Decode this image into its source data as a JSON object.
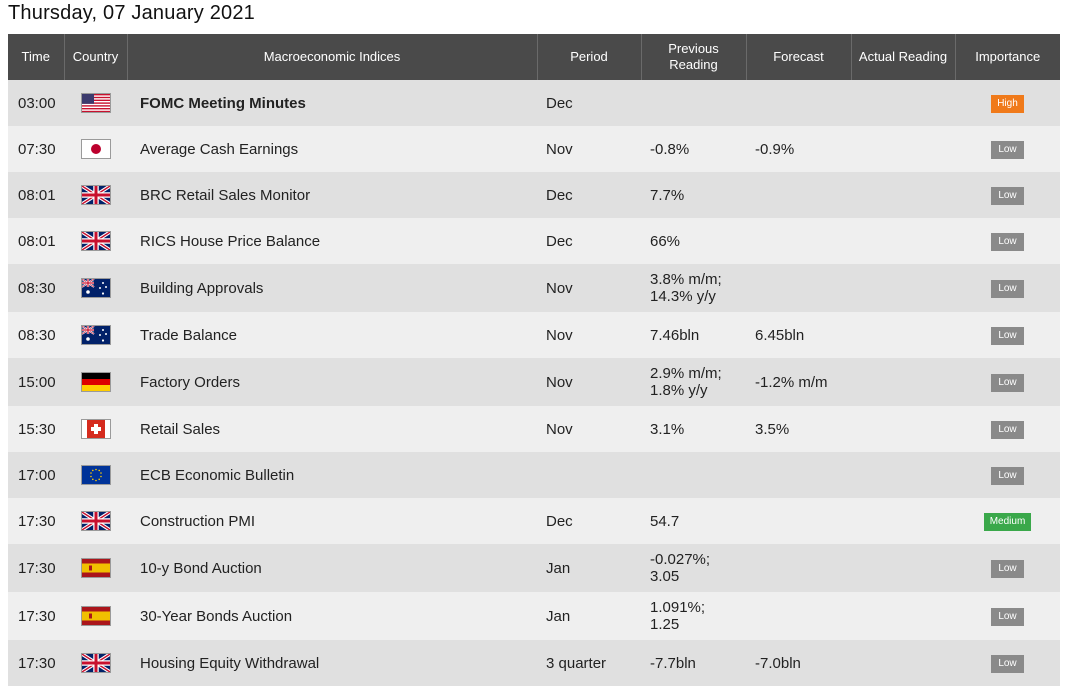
{
  "page": {
    "date_title": "Thursday, 07 January 2021"
  },
  "table": {
    "headers": {
      "time": "Time",
      "country": "Country",
      "indices": "Macroeconomic Indices",
      "period": "Period",
      "previous_line1": "Previous",
      "previous_line2": "Reading",
      "forecast": "Forecast",
      "actual": "Actual Reading",
      "importance": "Importance"
    },
    "rows": [
      {
        "time": "03:00",
        "country_icon": "us-flag-icon",
        "index": "FOMC Meeting Minutes",
        "period": "Dec",
        "previous": [
          "",
          ""
        ],
        "forecast": "",
        "actual": "",
        "importance": "High"
      },
      {
        "time": "07:30",
        "country_icon": "japan-flag-icon",
        "index": "Average Cash Earnings",
        "period": "Nov",
        "previous": [
          "-0.8%",
          ""
        ],
        "forecast": "-0.9%",
        "actual": "",
        "importance": "Low"
      },
      {
        "time": "08:01",
        "country_icon": "uk-flag-icon",
        "index": "BRC Retail Sales Monitor",
        "period": "Dec",
        "previous": [
          "7.7%",
          ""
        ],
        "forecast": "",
        "actual": "",
        "importance": "Low"
      },
      {
        "time": "08:01",
        "country_icon": "uk-flag-icon",
        "index": "RICS House Price Balance",
        "period": "Dec",
        "previous": [
          "66%",
          ""
        ],
        "forecast": "",
        "actual": "",
        "importance": "Low"
      },
      {
        "time": "08:30",
        "country_icon": "australia-flag-icon",
        "index": "Building Approvals",
        "period": "Nov",
        "previous": [
          "3.8% m/m;",
          "14.3% y/y"
        ],
        "forecast": "",
        "actual": "",
        "importance": "Low"
      },
      {
        "time": "08:30",
        "country_icon": "australia-flag-icon",
        "index": "Trade Balance",
        "period": "Nov",
        "previous": [
          "7.46bln",
          ""
        ],
        "forecast": "6.45bln",
        "actual": "",
        "importance": "Low"
      },
      {
        "time": "15:00",
        "country_icon": "germany-flag-icon",
        "index": "Factory Orders",
        "period": "Nov",
        "previous": [
          "2.9% m/m;",
          "1.8% y/y"
        ],
        "forecast": "-1.2% m/m",
        "actual": "",
        "importance": "Low"
      },
      {
        "time": "15:30",
        "country_icon": "switzerland-flag-icon",
        "index": "Retail Sales",
        "period": "Nov",
        "previous": [
          "3.1%",
          ""
        ],
        "forecast": "3.5%",
        "actual": "",
        "importance": "Low"
      },
      {
        "time": "17:00",
        "country_icon": "eu-flag-icon",
        "index": "ECB Economic Bulletin",
        "period": "",
        "previous": [
          "",
          ""
        ],
        "forecast": "",
        "actual": "",
        "importance": "Low"
      },
      {
        "time": "17:30",
        "country_icon": "uk-flag-icon",
        "index": "Construction PMI",
        "period": "Dec",
        "previous": [
          "54.7",
          ""
        ],
        "forecast": "",
        "actual": "",
        "importance": "Medium"
      },
      {
        "time": "17:30",
        "country_icon": "spain-flag-icon",
        "index": "10-y Bond Auction",
        "period": "Jan",
        "previous": [
          "-0.027%;",
          "3.05"
        ],
        "forecast": "",
        "actual": "",
        "importance": "Low"
      },
      {
        "time": "17:30",
        "country_icon": "spain-flag-icon",
        "index": "30-Year Bonds Auction",
        "period": "Jan",
        "previous": [
          "1.091%;",
          "1.25"
        ],
        "forecast": "",
        "actual": "",
        "importance": "Low"
      },
      {
        "time": "17:30",
        "country_icon": "uk-flag-icon",
        "index": "Housing Equity Withdrawal",
        "period": "3 quarter",
        "previous": [
          "-7.7bln",
          ""
        ],
        "forecast": "-7.0bln",
        "actual": "",
        "importance": "Low"
      }
    ]
  },
  "colors": {
    "header_bg": "#4a4a4a",
    "row_dark": "#e0e0e0",
    "row_light": "#efefef",
    "badge_low": "#8a8a8a",
    "badge_high": "#f07a1a",
    "badge_medium": "#3aa84a"
  }
}
